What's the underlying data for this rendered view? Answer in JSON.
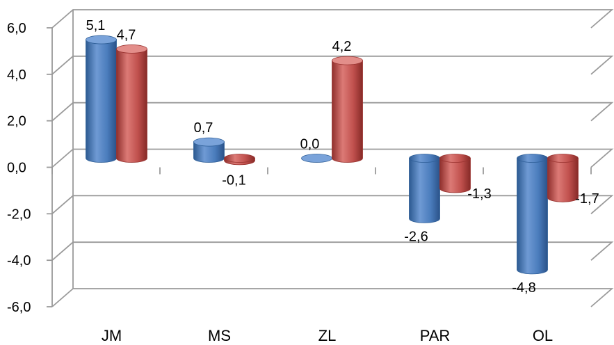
{
  "chart_data": {
    "type": "bar",
    "subtype": "3d-cylinder",
    "categories": [
      "JM",
      "MS",
      "ZL",
      "PAR",
      "OL"
    ],
    "series": [
      {
        "color": "#4F81BD",
        "values": [
          5.1,
          0.7,
          0.0,
          -2.6,
          -4.8
        ],
        "labels": [
          "5,1",
          "0,7",
          "0,0",
          "-2,6",
          "-4,8"
        ]
      },
      {
        "color": "#C0504D",
        "values": [
          4.7,
          -0.1,
          4.2,
          -1.3,
          -1.7
        ],
        "labels": [
          "4,7",
          "-0,1",
          "4,2",
          "-1,3",
          "-1,7"
        ]
      }
    ],
    "ylim": [
      -6,
      6
    ],
    "yticks": [
      {
        "value": 6,
        "label": "6,0"
      },
      {
        "value": 4,
        "label": "4,0"
      },
      {
        "value": 2,
        "label": "2,0"
      },
      {
        "value": 0,
        "label": "0,0"
      },
      {
        "value": -2,
        "label": "-2,0"
      },
      {
        "value": -4,
        "label": "-4,0"
      },
      {
        "value": -6,
        "label": "-6,0"
      }
    ],
    "grid": true,
    "legend": "none"
  }
}
